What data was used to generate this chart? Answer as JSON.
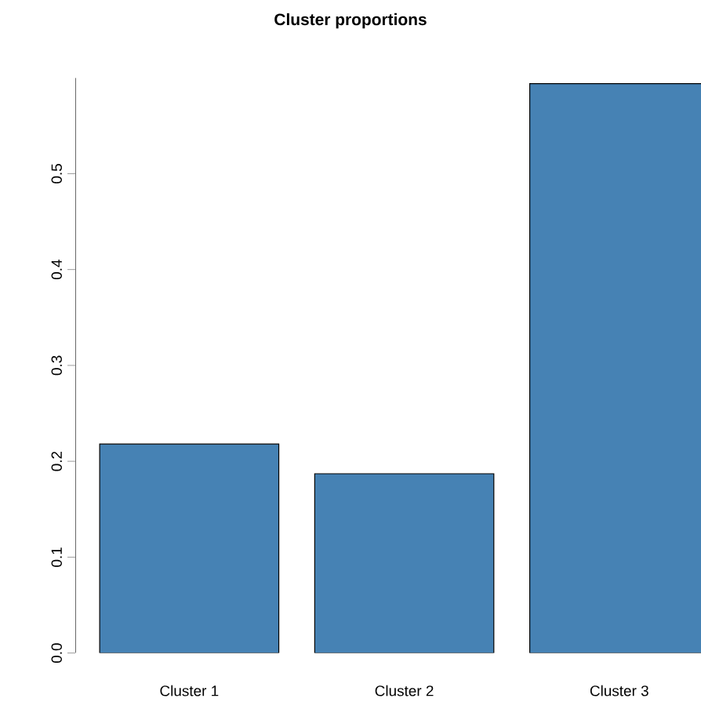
{
  "chart_data": {
    "type": "bar",
    "title": "Cluster proportions",
    "categories": [
      "Cluster 1",
      "Cluster 2",
      "Cluster 3"
    ],
    "values": [
      0.218,
      0.187,
      0.594
    ],
    "color": "#4682b4",
    "ylim": [
      0,
      0.6
    ],
    "yticks": [
      {
        "value": 0,
        "label": "0.0"
      },
      0.1,
      0.2,
      0.3,
      0.4,
      0.5
    ]
  }
}
